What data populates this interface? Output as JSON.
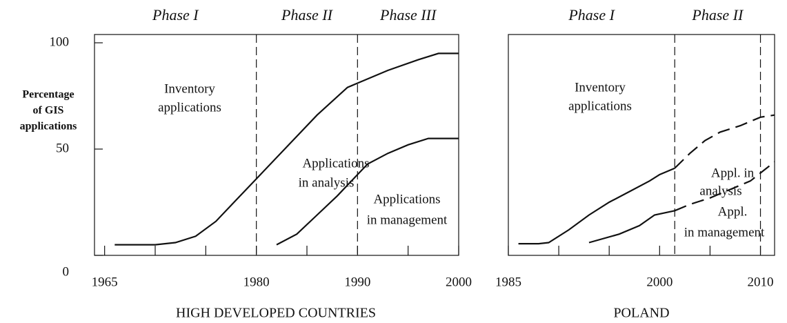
{
  "chart_data": [
    {
      "type": "line",
      "title": "HIGH DEVELOPED COUNTRIES",
      "ylabel": [
        "Percentage",
        "of GIS",
        "applications"
      ],
      "xlim": [
        1964,
        2000
      ],
      "ylim": [
        0,
        100
      ],
      "xticks": [
        1965,
        1980,
        1990,
        2000
      ],
      "xminorticks": [
        1970,
        1975,
        1985,
        1995
      ],
      "yticks": [
        0,
        50,
        100
      ],
      "dividers": [
        1980,
        1990
      ],
      "phases": [
        "Phase I",
        "Phase II",
        "Phase III"
      ],
      "series": [
        {
          "color": "#111111",
          "x": [
            1966,
            1970,
            1972,
            1974,
            1976,
            1978,
            1980,
            1983,
            1986,
            1989,
            1990,
            1993,
            1996,
            1998,
            2000
          ],
          "values": [
            5,
            5,
            6,
            9,
            16,
            26,
            36,
            51,
            66,
            79,
            81,
            87,
            92,
            95,
            95
          ]
        },
        {
          "color": "#111111",
          "x": [
            1982,
            1984,
            1986,
            1988,
            1990,
            1991,
            1993,
            1995,
            1997,
            2000
          ],
          "values": [
            5,
            10,
            19,
            28,
            38,
            43,
            48,
            52,
            55,
            55
          ]
        }
      ],
      "annotations": [
        {
          "text": [
            "Inventory",
            "applications"
          ]
        },
        {
          "text": [
            "Applications",
            "in analysis"
          ]
        },
        {
          "text": [
            "Applications",
            "in management"
          ]
        }
      ]
    },
    {
      "type": "line",
      "title": "POLAND",
      "xlim": [
        1985,
        2011.4
      ],
      "ylim": [
        0,
        100
      ],
      "xticks": [
        1985,
        2000,
        2010
      ],
      "xminorticks": [
        1990,
        1995,
        2005
      ],
      "dividers": [
        2001.5,
        2010
      ],
      "phases": [
        "Phase I",
        "Phase II"
      ],
      "projection_start": 2001.5,
      "series": [
        {
          "color": "#111111",
          "x": [
            1986,
            1988,
            1989,
            1991,
            1993,
            1995,
            1997,
            1999,
            2000,
            2001.5,
            2003,
            2004.5,
            2006,
            2008,
            2010,
            2011.4
          ],
          "values": [
            5.5,
            5.5,
            6,
            12,
            19,
            25,
            30,
            35,
            38,
            41,
            48,
            54,
            58,
            61,
            65,
            66
          ]
        },
        {
          "color": "#111111",
          "x": [
            1993,
            1996,
            1998,
            1999.5,
            2001.5,
            2003,
            2005,
            2007,
            2009,
            2011.4
          ],
          "values": [
            6,
            10,
            14,
            19,
            21,
            24,
            27,
            31,
            35,
            44
          ]
        }
      ],
      "annotations": [
        {
          "text": [
            "Inventory",
            "applications"
          ]
        },
        {
          "text": [
            "Appl. in",
            "analysis"
          ]
        },
        {
          "text": [
            "Appl.",
            "in management"
          ]
        }
      ]
    }
  ]
}
